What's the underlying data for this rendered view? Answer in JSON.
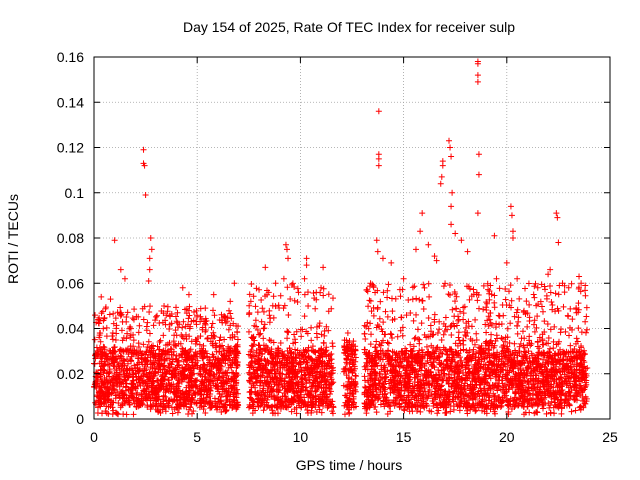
{
  "chart_data": {
    "type": "scatter",
    "title": "Day 154 of 2025, Rate Of TEC Index for receiver sulp",
    "xlabel": "GPS time / hours",
    "ylabel": "ROTI / TECUs",
    "xlim": [
      0,
      25
    ],
    "ylim": [
      0,
      0.16
    ],
    "x_ticks": [
      "0",
      "5",
      "10",
      "15",
      "20",
      "25"
    ],
    "y_ticks": [
      "0",
      "0.02",
      "0.04",
      "0.06",
      "0.08",
      "0.1",
      "0.12",
      "0.14",
      "0.16"
    ],
    "x_tick_values": [
      0,
      5,
      10,
      15,
      20,
      25
    ],
    "y_tick_values": [
      0,
      0.02,
      0.04,
      0.06,
      0.08,
      0.1,
      0.12,
      0.14,
      0.16
    ],
    "grid": true,
    "marker": "+",
    "colors": {
      "series": "#ff0000",
      "grid": "#a0a0a0",
      "axis": "#000000"
    },
    "dense_band": {
      "y_low": 0.005,
      "y_high": 0.03
    },
    "data_segments": [
      {
        "x_start": 0.0,
        "x_end": 7.0,
        "typical_max": 0.05
      },
      {
        "x_start": 7.5,
        "x_end": 11.6,
        "typical_max": 0.06
      },
      {
        "x_start": 12.1,
        "x_end": 12.7,
        "typical_max": 0.035
      },
      {
        "x_start": 13.1,
        "x_end": 23.9,
        "typical_max": 0.06
      }
    ],
    "peak_points": [
      {
        "x": 0.2,
        "y": 0.044
      },
      {
        "x": 0.35,
        "y": 0.054
      },
      {
        "x": 0.8,
        "y": 0.053
      },
      {
        "x": 1.0,
        "y": 0.079
      },
      {
        "x": 1.3,
        "y": 0.066
      },
      {
        "x": 1.5,
        "y": 0.062
      },
      {
        "x": 2.4,
        "y": 0.119
      },
      {
        "x": 2.4,
        "y": 0.113
      },
      {
        "x": 2.45,
        "y": 0.112
      },
      {
        "x": 2.5,
        "y": 0.099
      },
      {
        "x": 2.75,
        "y": 0.08
      },
      {
        "x": 2.8,
        "y": 0.075
      },
      {
        "x": 2.7,
        "y": 0.071
      },
      {
        "x": 2.7,
        "y": 0.066
      },
      {
        "x": 2.65,
        "y": 0.061
      },
      {
        "x": 4.3,
        "y": 0.058
      },
      {
        "x": 4.6,
        "y": 0.055
      },
      {
        "x": 5.8,
        "y": 0.055
      },
      {
        "x": 6.6,
        "y": 0.052
      },
      {
        "x": 6.8,
        "y": 0.06
      },
      {
        "x": 7.6,
        "y": 0.052
      },
      {
        "x": 8.3,
        "y": 0.067
      },
      {
        "x": 8.8,
        "y": 0.06
      },
      {
        "x": 9.2,
        "y": 0.062
      },
      {
        "x": 9.3,
        "y": 0.077
      },
      {
        "x": 9.35,
        "y": 0.075
      },
      {
        "x": 9.4,
        "y": 0.071
      },
      {
        "x": 10.3,
        "y": 0.071
      },
      {
        "x": 10.3,
        "y": 0.068
      },
      {
        "x": 10.2,
        "y": 0.062
      },
      {
        "x": 11.1,
        "y": 0.067
      },
      {
        "x": 11.0,
        "y": 0.058
      },
      {
        "x": 12.3,
        "y": 0.038
      },
      {
        "x": 13.4,
        "y": 0.06
      },
      {
        "x": 13.7,
        "y": 0.079
      },
      {
        "x": 13.75,
        "y": 0.074
      },
      {
        "x": 13.8,
        "y": 0.136
      },
      {
        "x": 13.8,
        "y": 0.117
      },
      {
        "x": 13.8,
        "y": 0.115
      },
      {
        "x": 13.8,
        "y": 0.112
      },
      {
        "x": 14.0,
        "y": 0.071
      },
      {
        "x": 14.4,
        "y": 0.069
      },
      {
        "x": 15.0,
        "y": 0.062
      },
      {
        "x": 15.6,
        "y": 0.075
      },
      {
        "x": 15.8,
        "y": 0.083
      },
      {
        "x": 15.9,
        "y": 0.091
      },
      {
        "x": 16.2,
        "y": 0.077
      },
      {
        "x": 16.5,
        "y": 0.072
      },
      {
        "x": 16.6,
        "y": 0.07
      },
      {
        "x": 16.8,
        "y": 0.104
      },
      {
        "x": 16.85,
        "y": 0.107
      },
      {
        "x": 16.9,
        "y": 0.114
      },
      {
        "x": 16.9,
        "y": 0.112
      },
      {
        "x": 17.2,
        "y": 0.123
      },
      {
        "x": 17.25,
        "y": 0.12
      },
      {
        "x": 17.3,
        "y": 0.116
      },
      {
        "x": 17.35,
        "y": 0.1
      },
      {
        "x": 17.3,
        "y": 0.094
      },
      {
        "x": 17.3,
        "y": 0.086
      },
      {
        "x": 17.5,
        "y": 0.082
      },
      {
        "x": 17.8,
        "y": 0.079
      },
      {
        "x": 18.1,
        "y": 0.074
      },
      {
        "x": 18.6,
        "y": 0.158
      },
      {
        "x": 18.6,
        "y": 0.157
      },
      {
        "x": 18.6,
        "y": 0.152
      },
      {
        "x": 18.6,
        "y": 0.149
      },
      {
        "x": 18.65,
        "y": 0.117
      },
      {
        "x": 18.65,
        "y": 0.108
      },
      {
        "x": 18.6,
        "y": 0.091
      },
      {
        "x": 19.4,
        "y": 0.081
      },
      {
        "x": 19.5,
        "y": 0.062
      },
      {
        "x": 20.0,
        "y": 0.069
      },
      {
        "x": 20.2,
        "y": 0.094
      },
      {
        "x": 20.25,
        "y": 0.09
      },
      {
        "x": 20.3,
        "y": 0.083
      },
      {
        "x": 20.3,
        "y": 0.08
      },
      {
        "x": 20.5,
        "y": 0.062
      },
      {
        "x": 21.5,
        "y": 0.058
      },
      {
        "x": 22.0,
        "y": 0.064
      },
      {
        "x": 22.1,
        "y": 0.066
      },
      {
        "x": 22.4,
        "y": 0.091
      },
      {
        "x": 22.45,
        "y": 0.089
      },
      {
        "x": 22.5,
        "y": 0.078
      },
      {
        "x": 22.7,
        "y": 0.06
      },
      {
        "x": 23.0,
        "y": 0.058
      },
      {
        "x": 23.5,
        "y": 0.063
      },
      {
        "x": 23.6,
        "y": 0.06
      },
      {
        "x": 23.8,
        "y": 0.059
      }
    ]
  }
}
